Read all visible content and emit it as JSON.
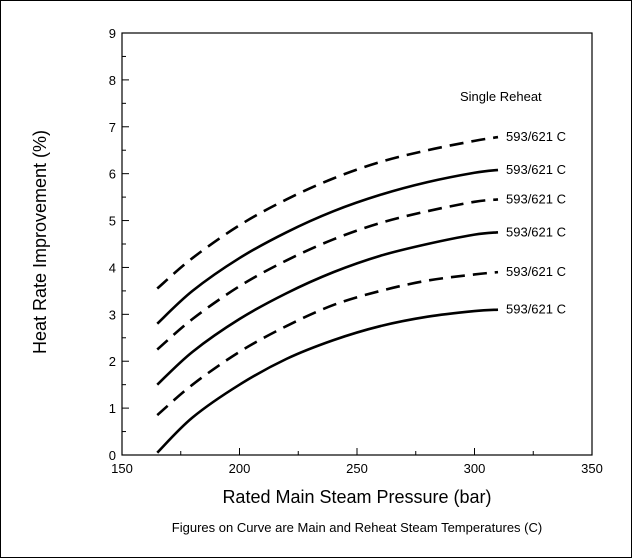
{
  "chart_data": {
    "type": "line",
    "title": "",
    "xlabel": "Rated Main Steam Pressure (bar)",
    "ylabel": "Heat Rate Improvement (%)",
    "xlim": [
      150,
      350
    ],
    "ylim": [
      0,
      9
    ],
    "x_ticks": [
      150,
      200,
      250,
      300,
      350
    ],
    "y_ticks": [
      0,
      1,
      2,
      3,
      4,
      5,
      6,
      7,
      8,
      9
    ],
    "grid": false,
    "legend_title": "Single Reheat",
    "footnote": "Figures on Curve are Main and Reheat Steam Temperatures (C)",
    "x": [
      165,
      180,
      200,
      220,
      240,
      260,
      280,
      300,
      310
    ],
    "series": [
      {
        "name": "593/621 C",
        "style": "dashed",
        "values": [
          3.55,
          4.2,
          4.9,
          5.45,
          5.9,
          6.25,
          6.5,
          6.7,
          6.78
        ]
      },
      {
        "name": "593/621 C",
        "style": "solid",
        "values": [
          2.8,
          3.5,
          4.2,
          4.75,
          5.2,
          5.55,
          5.82,
          6.02,
          6.08
        ]
      },
      {
        "name": "593/621 C",
        "style": "dashed",
        "values": [
          2.25,
          2.9,
          3.6,
          4.15,
          4.6,
          4.95,
          5.2,
          5.4,
          5.45
        ]
      },
      {
        "name": "593/621 C",
        "style": "solid",
        "values": [
          1.5,
          2.2,
          2.9,
          3.45,
          3.9,
          4.25,
          4.5,
          4.7,
          4.75
        ]
      },
      {
        "name": "593/621 C",
        "style": "dashed",
        "values": [
          0.85,
          1.5,
          2.2,
          2.75,
          3.2,
          3.5,
          3.72,
          3.85,
          3.9
        ]
      },
      {
        "name": "593/621 C",
        "style": "solid",
        "values": [
          0.05,
          0.8,
          1.5,
          2.05,
          2.45,
          2.75,
          2.95,
          3.07,
          3.1
        ]
      }
    ]
  }
}
